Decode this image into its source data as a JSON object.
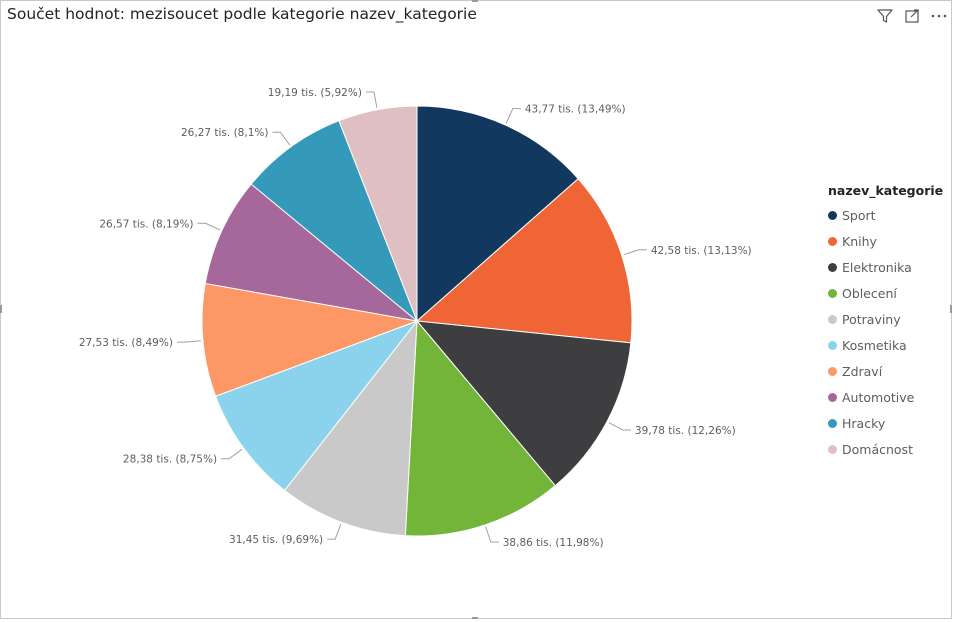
{
  "visual": {
    "title": "Součet hodnot: mezisoucet podle kategorie nazev_kategorie",
    "header_icons": [
      "filter-icon",
      "focus-mode-icon",
      "more-options-icon"
    ]
  },
  "chart_data": {
    "type": "pie",
    "title": "Součet hodnot: mezisoucet podle kategorie nazev_kategorie",
    "legend_title": "nazev_kategorie",
    "legend_position": "right",
    "start_angle": "top, clockwise",
    "slices": [
      {
        "name": "Sport",
        "value": 43.77,
        "label": "43,77 tis. (13,49%)",
        "color": "#12385f"
      },
      {
        "name": "Knihy",
        "value": 42.58,
        "label": "42,58 tis. (13,13%)",
        "color": "#f06535"
      },
      {
        "name": "Elektronika",
        "value": 39.78,
        "label": "39,78 tis. (12,26%)",
        "color": "#3e3e40"
      },
      {
        "name": "Oblecení",
        "value": 38.86,
        "label": "38,86 tis. (11,98%)",
        "color": "#73b538"
      },
      {
        "name": "Potraviny",
        "value": 31.45,
        "label": "31,45 tis. (9,69%)",
        "color": "#c9c9c9"
      },
      {
        "name": "Kosmetika",
        "value": 28.38,
        "label": "28,38 tis. (8,75%)",
        "color": "#8bd3ec"
      },
      {
        "name": "Zdraví",
        "value": 27.53,
        "label": "27,53 tis. (8,49%)",
        "color": "#fe9766"
      },
      {
        "name": "Automotive",
        "value": 26.57,
        "label": "26,57 tis. (8,19%)",
        "color": "#a6689b"
      },
      {
        "name": "Hracky",
        "value": 26.27,
        "label": "26,27 tis. (8,1%)",
        "color": "#3599b9"
      },
      {
        "name": "Domácnost",
        "value": 19.19,
        "label": "19,19 tis. (5,92%)",
        "color": "#dfbfc1"
      }
    ]
  }
}
